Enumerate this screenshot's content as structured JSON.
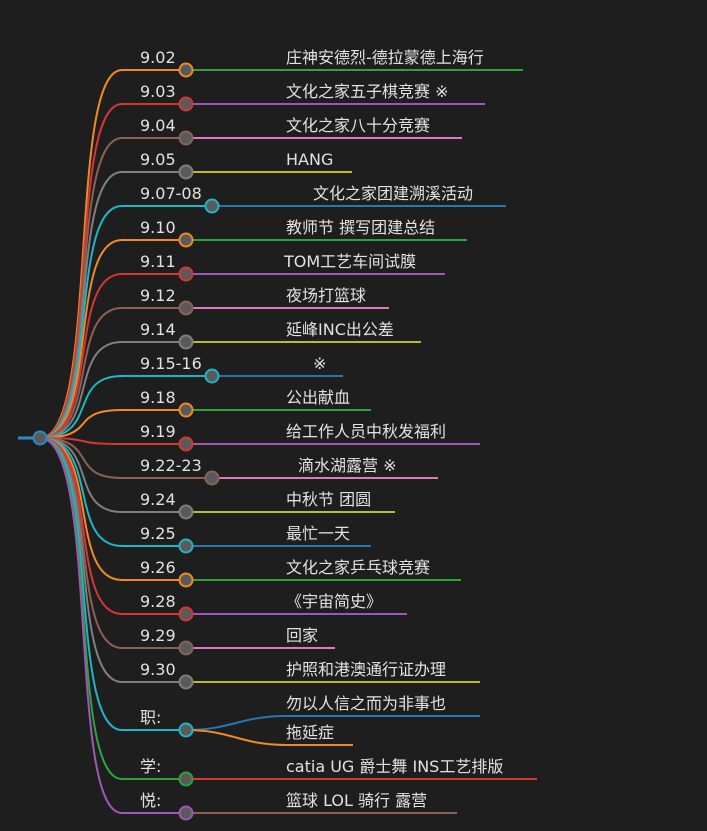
{
  "root": {
    "color": "#2b8cc4"
  },
  "branches": [
    {
      "label": "9.02",
      "color": "#f08a24",
      "children": [
        {
          "text": "庄神安德烈-德拉蒙德上海行",
          "color": "#2ea33a"
        }
      ]
    },
    {
      "label": "9.03",
      "color": "#d63636",
      "children": [
        {
          "text": "文化之家五子棋竞赛 ※",
          "color": "#9b59b6"
        }
      ]
    },
    {
      "label": "9.04",
      "color": "#8a6155",
      "children": [
        {
          "text": "文化之家八十分竞赛",
          "color": "#e377c2"
        }
      ]
    },
    {
      "label": "9.05",
      "color": "#7f7f7f",
      "children": [
        {
          "text": "HANG",
          "color": "#bcbd22"
        }
      ]
    },
    {
      "label": "9.07-08",
      "color": "#1fb5c9",
      "children": [
        {
          "text": "文化之家团建溯溪活动",
          "color": "#2677b4"
        }
      ]
    },
    {
      "label": "9.10",
      "color": "#f08a24",
      "children": [
        {
          "text": "教师节 撰写团建总结",
          "color": "#2ea33a"
        }
      ]
    },
    {
      "label": "9.11",
      "color": "#d63636",
      "children": [
        {
          "text": "TOM工艺车间试膜",
          "color": "#9b59b6"
        }
      ]
    },
    {
      "label": "9.12",
      "color": "#8a6155",
      "children": [
        {
          "text": "夜场打篮球",
          "color": "#e377c2"
        }
      ]
    },
    {
      "label": "9.14",
      "color": "#7f7f7f",
      "children": [
        {
          "text": "延峰INC出公差",
          "color": "#bcbd22"
        }
      ]
    },
    {
      "label": "9.15-16",
      "color": "#1fb5c9",
      "children": [
        {
          "text": "※",
          "color": "#2677b4"
        }
      ]
    },
    {
      "label": "9.18",
      "color": "#f08a24",
      "children": [
        {
          "text": "公出献血",
          "color": "#2ea33a"
        }
      ]
    },
    {
      "label": "9.19",
      "color": "#d63636",
      "children": [
        {
          "text": "给工作人员中秋发福利",
          "color": "#9b59b6"
        }
      ]
    },
    {
      "label": "9.22-23",
      "color": "#8a6155",
      "children": [
        {
          "text": "滴水湖露营 ※",
          "color": "#e377c2"
        }
      ]
    },
    {
      "label": "9.24",
      "color": "#7f7f7f",
      "children": [
        {
          "text": "中秋节 团圆",
          "color": "#bcbd22"
        }
      ]
    },
    {
      "label": "9.25",
      "color": "#1fb5c9",
      "children": [
        {
          "text": "最忙一天",
          "color": "#2677b4"
        }
      ]
    },
    {
      "label": "9.26",
      "color": "#f08a24",
      "children": [
        {
          "text": "文化之家乒乓球竞赛",
          "color": "#2ea33a"
        }
      ]
    },
    {
      "label": "9.28",
      "color": "#d63636",
      "children": [
        {
          "text": "《宇宙简史》",
          "color": "#9b59b6"
        }
      ]
    },
    {
      "label": "9.29",
      "color": "#8a6155",
      "children": [
        {
          "text": "回家",
          "color": "#e377c2"
        }
      ]
    },
    {
      "label": "9.30",
      "color": "#7f7f7f",
      "children": [
        {
          "text": "护照和港澳通行证办理",
          "color": "#bcbd22"
        }
      ]
    },
    {
      "label": "职:",
      "color": "#1fb5c9",
      "children": [
        {
          "text": "勿以人信之而为非事也",
          "color": "#2677b4"
        },
        {
          "text": "拖延症",
          "color": "#f08a24"
        }
      ]
    },
    {
      "label": "学:",
      "color": "#2ea33a",
      "children": [
        {
          "text": "catia UG 爵士舞 INS工艺排版",
          "color": "#d63636"
        }
      ]
    },
    {
      "label": "悦:",
      "color": "#9b59b6",
      "children": [
        {
          "text": "篮球 LOL 骑行 露营",
          "color": "#8a6155"
        }
      ]
    }
  ]
}
